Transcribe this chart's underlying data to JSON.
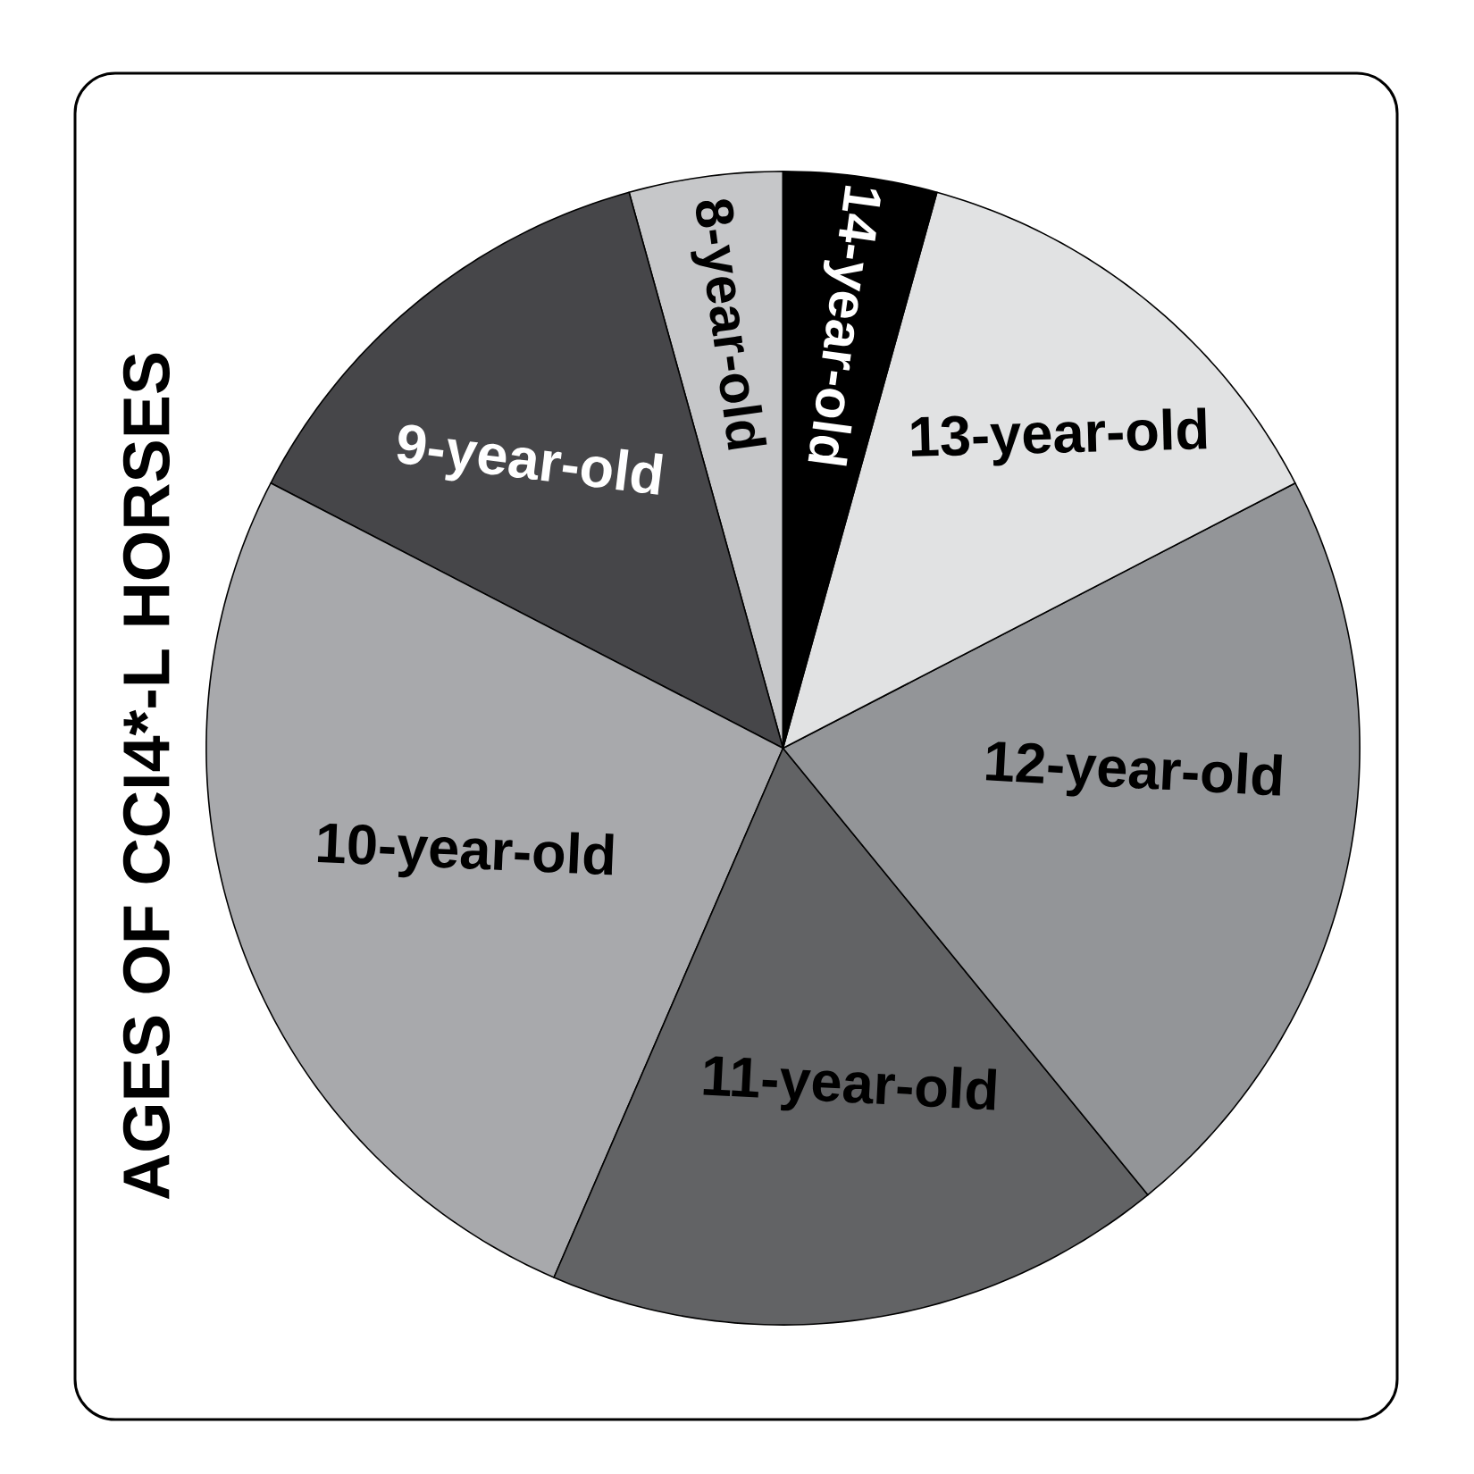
{
  "chart_data": {
    "type": "pie",
    "title": "AGES OF CCI4*-L HORSES",
    "categories": [
      "8-year-old",
      "9-year-old",
      "10-year-old",
      "11-year-old",
      "12-year-old",
      "13-year-old",
      "14-year-old"
    ],
    "values": [
      4.3,
      13.1,
      26.1,
      17.4,
      21.7,
      13.1,
      4.3
    ],
    "colors": [
      "#c6c7c9",
      "#464649",
      "#a8a9ac",
      "#626365",
      "#939598",
      "#e1e2e3",
      "#000000"
    ]
  }
}
